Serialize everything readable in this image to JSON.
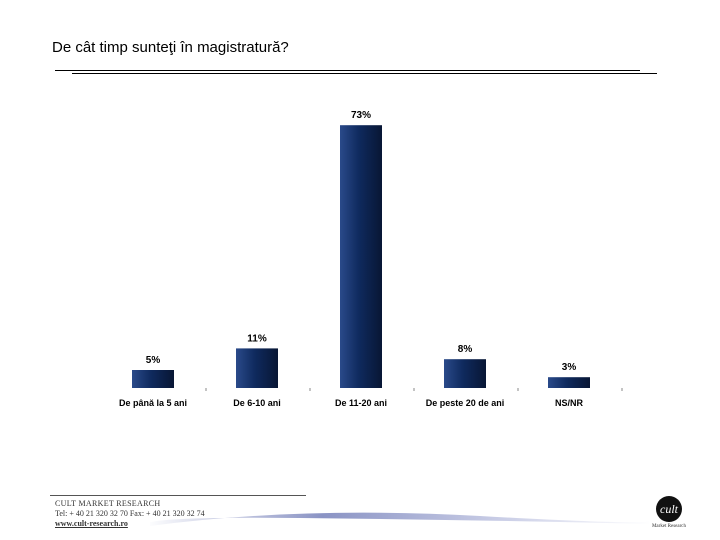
{
  "page": {
    "title": "De cât timp sunteţi în magistratură?"
  },
  "chart_data": {
    "type": "bar",
    "categories": [
      "De până la 5 ani",
      "De 6-10 ani",
      "De 11-20 ani",
      "De peste 20 de ani",
      "NS/NR"
    ],
    "values": [
      5,
      11,
      73,
      8,
      3
    ],
    "value_labels": [
      "5%",
      "11%",
      "73%",
      "8%",
      "3%"
    ],
    "ylim": [
      0,
      80
    ],
    "bar_color": "#0f2a5e",
    "grid": false,
    "legend": "none"
  },
  "footer": {
    "company": "CULT MARKET RESEARCH",
    "phone": "Tel: + 40 21 320 32 70  Fax: + 40 21 320 32 74",
    "website": "www.cult-research.ro"
  },
  "logo": {
    "mark": "cult",
    "caption": "Market Research"
  }
}
